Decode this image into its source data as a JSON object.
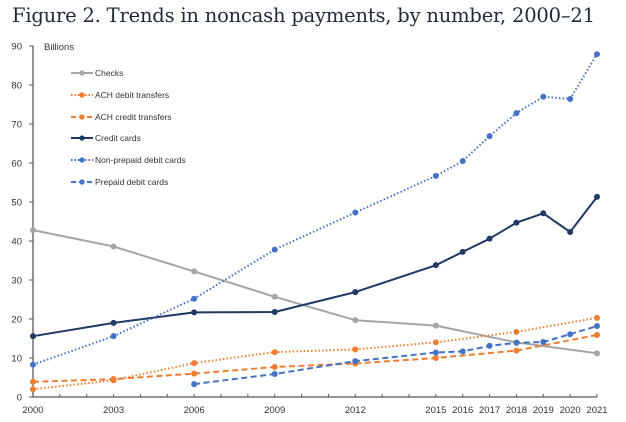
{
  "title": "Figure 2. Trends in noncash payments, by number, 2000–21",
  "chart_data": {
    "type": "line",
    "title": "Figure 2. Trends in noncash payments, by number, 2000–21",
    "xlabel": "",
    "ylabel": "Billions",
    "ylim": [
      0,
      90
    ],
    "yticks": [
      0,
      10,
      20,
      30,
      40,
      50,
      60,
      70,
      80,
      90
    ],
    "xlim": [
      2000,
      2021
    ],
    "xtick_labels": [
      "2000",
      "2003",
      "2006",
      "2009",
      "2012",
      "2015",
      "2016",
      "2017",
      "2018",
      "2019",
      "2020",
      "2021"
    ],
    "grid": false,
    "legend_position": "top-left",
    "series": [
      {
        "name": "Checks",
        "color": "#a5a5a5",
        "style": "solid",
        "x": [
          2000,
          2003,
          2006,
          2009,
          2012,
          2015,
          2018,
          2021
        ],
        "values": [
          42.8,
          38.6,
          32.2,
          25.7,
          19.7,
          18.3,
          14.0,
          11.2
        ]
      },
      {
        "name": "ACH debit transfers",
        "color": "#ed7d31",
        "style": "dotted",
        "x": [
          2000,
          2003,
          2006,
          2009,
          2012,
          2015,
          2018,
          2021
        ],
        "values": [
          2.0,
          4.3,
          8.7,
          11.5,
          12.2,
          14.0,
          16.7,
          20.3
        ]
      },
      {
        "name": "ACH credit transfers",
        "color": "#ed7d31",
        "style": "dashed",
        "x": [
          2000,
          2003,
          2006,
          2009,
          2012,
          2015,
          2018,
          2021
        ],
        "values": [
          3.9,
          4.6,
          6.0,
          7.7,
          8.6,
          10.0,
          11.9,
          15.9
        ]
      },
      {
        "name": "Credit cards",
        "color": "#203864",
        "style": "solid",
        "x": [
          2000,
          2003,
          2006,
          2009,
          2012,
          2015,
          2016,
          2017,
          2018,
          2019,
          2020,
          2021
        ],
        "values": [
          15.6,
          19.0,
          21.7,
          21.8,
          26.9,
          33.8,
          37.2,
          40.6,
          44.7,
          47.1,
          42.3,
          51.3
        ]
      },
      {
        "name": "Non-prepaid debit cards",
        "color": "#4472c4",
        "style": "dotted",
        "x": [
          2000,
          2003,
          2006,
          2009,
          2012,
          2015,
          2016,
          2017,
          2018,
          2019,
          2020,
          2021
        ],
        "values": [
          8.3,
          15.6,
          25.2,
          37.8,
          47.3,
          56.7,
          60.5,
          66.9,
          72.8,
          77.0,
          76.4,
          87.9
        ]
      },
      {
        "name": "Prepaid debit cards",
        "color": "#4472c4",
        "style": "dashed",
        "x": [
          2006,
          2009,
          2012,
          2015,
          2016,
          2017,
          2018,
          2019,
          2020,
          2021
        ],
        "values": [
          3.3,
          5.9,
          9.2,
          11.4,
          11.7,
          13.1,
          13.9,
          14.1,
          16.1,
          18.2
        ]
      }
    ]
  }
}
